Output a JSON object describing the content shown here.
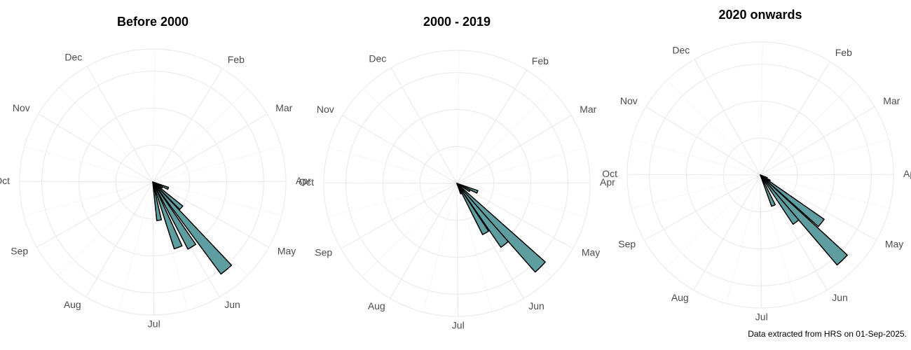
{
  "chart_data": [
    {
      "type": "bar",
      "polar": true,
      "title": "Before 2000",
      "color": "#5f9ea0",
      "bin_width": 7,
      "x": [
        114,
        121,
        134,
        142,
        151,
        161,
        173
      ],
      "values": [
        4.5,
        3,
        10.4,
        31,
        20.5,
        19,
        10.5
      ],
      "xlim": [
        0,
        365
      ],
      "ylim": [
        0,
        36
      ],
      "yticks": [
        10,
        20,
        30
      ],
      "xticks": [
        {
          "value": 32,
          "label": "Feb"
        },
        {
          "value": 60,
          "label": "Mar"
        },
        {
          "value": 91,
          "label": "Apr"
        },
        {
          "value": 121,
          "label": "May"
        },
        {
          "value": 152,
          "label": "Jun"
        },
        {
          "value": 182,
          "label": "Jul"
        },
        {
          "value": 213,
          "label": "Aug"
        },
        {
          "value": 244,
          "label": "Sep"
        },
        {
          "value": 274,
          "label": "Oct"
        },
        {
          "value": 305,
          "label": "Nov"
        },
        {
          "value": 335,
          "label": "Dec"
        }
      ]
    },
    {
      "type": "bar",
      "polar": true,
      "title": "2000 - 2019",
      "color": "#5f9ea0",
      "bin_width": 7,
      "x": [
        114,
        121,
        137,
        144,
        152,
        159
      ],
      "values": [
        6,
        4,
        32,
        21,
        15.5,
        3
      ],
      "xlim": [
        0,
        365
      ],
      "ylim": [
        0,
        36
      ],
      "yticks": [
        10,
        20,
        30
      ],
      "xticks": [
        {
          "value": 32,
          "label": "Feb"
        },
        {
          "value": 60,
          "label": "Mar"
        },
        {
          "value": 91,
          "label": "Apr"
        },
        {
          "value": 121,
          "label": "May"
        },
        {
          "value": 152,
          "label": "Jun"
        },
        {
          "value": 182,
          "label": "Jul"
        },
        {
          "value": 213,
          "label": "Aug"
        },
        {
          "value": 244,
          "label": "Sep"
        },
        {
          "value": 274,
          "label": "Oct"
        },
        {
          "value": 305,
          "label": "Nov"
        },
        {
          "value": 335,
          "label": "Dec"
        }
      ]
    },
    {
      "type": "bar",
      "polar": true,
      "title": "2020 onwards",
      "color": "#5f9ea0",
      "bin_width": 7,
      "x": [
        116,
        123,
        130,
        138,
        145,
        159
      ],
      "values": [
        2,
        3,
        21,
        32,
        16,
        9
      ],
      "xlim": [
        0,
        365
      ],
      "ylim": [
        0,
        36
      ],
      "yticks": [
        10,
        20,
        30
      ],
      "xticks": [
        {
          "value": 32,
          "label": "Feb"
        },
        {
          "value": 60,
          "label": "Mar"
        },
        {
          "value": 91,
          "label": "Apr"
        },
        {
          "value": 121,
          "label": "May"
        },
        {
          "value": 152,
          "label": "Jun"
        },
        {
          "value": 182,
          "label": "Jul"
        },
        {
          "value": 213,
          "label": "Aug"
        },
        {
          "value": 244,
          "label": "Sep"
        },
        {
          "value": 274,
          "label": "Oct"
        },
        {
          "value": 305,
          "label": "Nov"
        },
        {
          "value": 335,
          "label": "Dec"
        }
      ]
    }
  ],
  "caption": "Data extracted from HRS on 01-Sep-2025."
}
